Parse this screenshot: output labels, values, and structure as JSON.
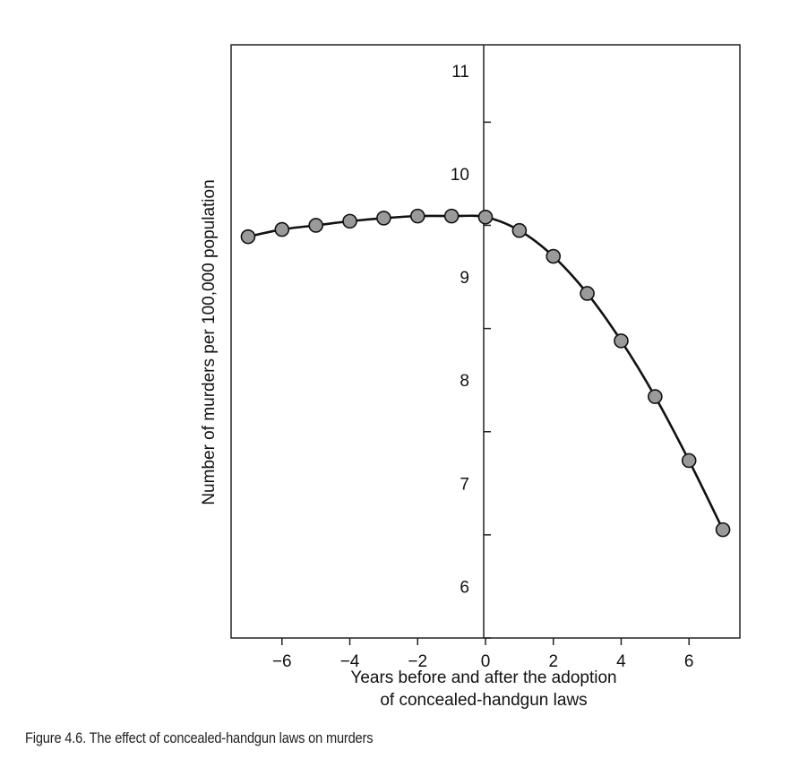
{
  "chart_data": {
    "type": "line",
    "title": "",
    "xlabel": [
      "Years before and after the adoption",
      "of concealed-handgun laws"
    ],
    "ylabel": "Number of murders per 100,000 population",
    "xlim": [
      -7.5,
      7.5
    ],
    "ylim": [
      5.5,
      11.25
    ],
    "x_ticks": [
      -6,
      -4,
      -2,
      0,
      2,
      4,
      6
    ],
    "x_tick_labels": [
      "−6",
      "−4",
      "−2",
      "0",
      "2",
      "4",
      "6"
    ],
    "y_ticks": [
      6,
      7,
      8,
      9,
      10,
      11
    ],
    "y_tick_labels": [
      "6",
      "7",
      "8",
      "9",
      "10",
      "11"
    ],
    "y_minor_ticks": [
      5.5,
      6.5,
      7.5,
      8.5,
      9.5,
      10.5
    ],
    "grid": false,
    "legend": "none",
    "series": [
      {
        "x": [
          -7,
          -6,
          -5,
          -4,
          -3,
          -2,
          -1,
          0,
          1,
          2,
          3,
          4,
          5,
          6,
          7
        ],
        "values": [
          9.39,
          9.46,
          9.5,
          9.54,
          9.57,
          9.59,
          9.59,
          9.58,
          9.45,
          9.2,
          8.84,
          8.38,
          7.84,
          7.22,
          6.55
        ]
      }
    ],
    "marker_color": "#9a9a9a",
    "line_color": "#111111"
  },
  "caption": "Figure 4.6. The effect of concealed-handgun laws on murders"
}
